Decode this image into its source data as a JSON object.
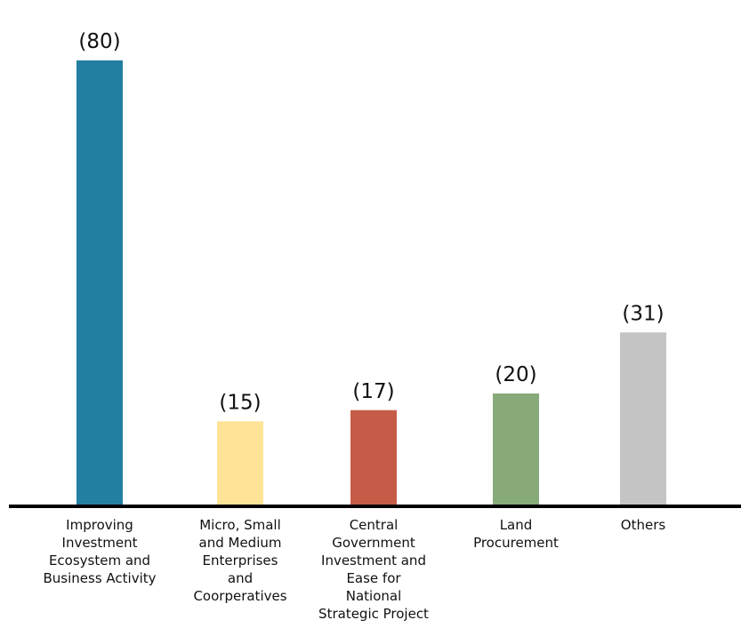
{
  "chart_data": {
    "type": "bar",
    "categories": [
      [
        "Improving",
        "Investment",
        "Ecosystem and",
        "Business Activity"
      ],
      [
        "Micro, Small",
        "and Medium",
        "Enterprises",
        "and",
        "Coorperatives"
      ],
      [
        "Central",
        "Government",
        "Investment and",
        "Ease for",
        "National",
        "Strategic Project"
      ],
      [
        "Land",
        "Procurement"
      ],
      [
        "Others"
      ]
    ],
    "values": [
      80,
      15,
      17,
      20,
      31
    ],
    "value_labels": [
      "(80)",
      "(15)",
      "(17)",
      "(20)",
      "(31)"
    ],
    "colors": [
      "#237FA2",
      "#FFE497",
      "#C65C47",
      "#88AA78",
      "#C4C4C4"
    ],
    "axis_color": "#000000",
    "title": "",
    "xlabel": "",
    "ylabel": "",
    "ylim": [
      0,
      80
    ],
    "grid": false,
    "legend": "none"
  }
}
